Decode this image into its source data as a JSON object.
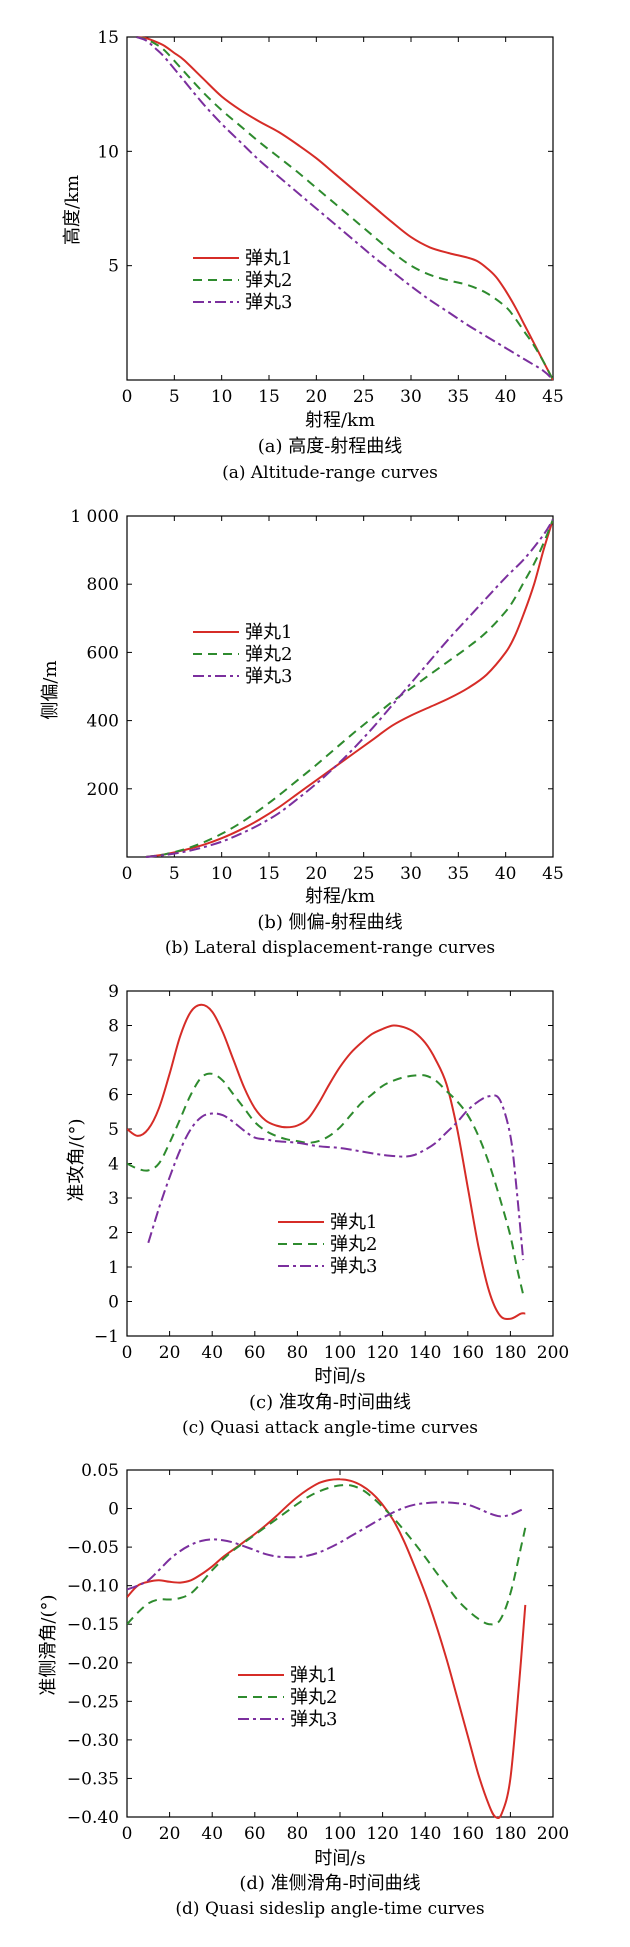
{
  "chart_data": [
    {
      "type": "line",
      "xlabel": "射程/km",
      "ylabel": "高度/km",
      "caption_cn": "(a) 高度-射程曲线",
      "caption_en": "(a) Altitude-range curves",
      "xlim": [
        0,
        45
      ],
      "ylim": [
        0,
        15
      ],
      "xticks": [
        0,
        5,
        10,
        15,
        20,
        25,
        30,
        35,
        40,
        45
      ],
      "xtick_labels": [
        "0",
        "5",
        "10",
        "15",
        "20",
        "25",
        "30",
        "35",
        "40",
        "45"
      ],
      "yticks": [
        5,
        10,
        15
      ],
      "ytick_labels": [
        "5",
        "10",
        "15"
      ],
      "legend_position": "center-left",
      "grid": false,
      "series": [
        {
          "name": "弹丸1",
          "color": "#d62c27",
          "dash": "solid",
          "x": [
            1,
            2,
            3,
            4,
            5,
            6,
            8,
            10,
            12,
            14,
            16,
            18,
            20,
            22,
            24,
            26,
            28,
            30,
            32,
            34,
            36,
            37,
            38,
            39,
            40,
            41,
            42,
            43,
            44,
            45
          ],
          "y": [
            15,
            14.95,
            14.8,
            14.6,
            14.3,
            14,
            13.2,
            12.4,
            11.8,
            11.3,
            10.85,
            10.3,
            9.7,
            9,
            8.3,
            7.6,
            6.9,
            6.25,
            5.8,
            5.55,
            5.35,
            5.2,
            4.9,
            4.5,
            3.9,
            3.2,
            2.4,
            1.6,
            0.8,
            0
          ]
        },
        {
          "name": "弹丸2",
          "color": "#2e8b2e",
          "dash": "dashed",
          "x": [
            1,
            2,
            3,
            4,
            6,
            8,
            10,
            12,
            14,
            16,
            18,
            20,
            22,
            24,
            26,
            28,
            30,
            32,
            34,
            36,
            38,
            40,
            41,
            42,
            43,
            44,
            45
          ],
          "y": [
            15,
            14.9,
            14.7,
            14.4,
            13.5,
            12.6,
            11.8,
            11.1,
            10.4,
            9.75,
            9.1,
            8.4,
            7.7,
            7,
            6.3,
            5.6,
            5.0,
            4.6,
            4.35,
            4.15,
            3.8,
            3.2,
            2.7,
            2.1,
            1.5,
            0.8,
            0
          ]
        },
        {
          "name": "弹丸3",
          "color": "#7b2f9e",
          "dash": "dashdot",
          "x": [
            1,
            2,
            3,
            4,
            6,
            8,
            10,
            12,
            14,
            16,
            18,
            20,
            22,
            24,
            26,
            28,
            30,
            32,
            34,
            36,
            38,
            40,
            42,
            44,
            45
          ],
          "y": [
            15,
            14.85,
            14.5,
            14.1,
            13.1,
            12.1,
            11.2,
            10.4,
            9.6,
            8.9,
            8.2,
            7.5,
            6.8,
            6.1,
            5.4,
            4.75,
            4.1,
            3.5,
            2.95,
            2.4,
            1.9,
            1.4,
            0.9,
            0.4,
            0
          ]
        }
      ]
    },
    {
      "type": "line",
      "xlabel": "射程/km",
      "ylabel": "侧偏/m",
      "caption_cn": "(b) 侧偏-射程曲线",
      "caption_en": "(b) Lateral displacement-range curves",
      "xlim": [
        0,
        45
      ],
      "ylim": [
        0,
        1000
      ],
      "xticks": [
        0,
        5,
        10,
        15,
        20,
        25,
        30,
        35,
        40,
        45
      ],
      "xtick_labels": [
        "0",
        "5",
        "10",
        "15",
        "20",
        "25",
        "30",
        "35",
        "40",
        "45"
      ],
      "yticks": [
        200,
        400,
        600,
        800,
        1000
      ],
      "ytick_labels": [
        "200",
        "400",
        "600",
        "800",
        "1 000"
      ],
      "legend_position": "center-left",
      "grid": false,
      "series": [
        {
          "name": "弹丸1",
          "color": "#d62c27",
          "dash": "solid",
          "x": [
            2,
            4,
            6,
            8,
            10,
            12,
            14,
            16,
            18,
            20,
            22,
            24,
            26,
            28,
            30,
            32,
            34,
            36,
            38,
            40,
            41,
            42,
            43,
            44,
            45
          ],
          "y": [
            0,
            8,
            20,
            35,
            55,
            80,
            110,
            145,
            185,
            225,
            265,
            305,
            345,
            385,
            415,
            440,
            465,
            495,
            535,
            600,
            650,
            720,
            800,
            900,
            990
          ]
        },
        {
          "name": "弹丸2",
          "color": "#2e8b2e",
          "dash": "dashed",
          "x": [
            2,
            4,
            6,
            8,
            10,
            12,
            14,
            16,
            18,
            20,
            22,
            24,
            26,
            28,
            30,
            32,
            34,
            36,
            38,
            40,
            41,
            42,
            43,
            44,
            45
          ],
          "y": [
            0,
            8,
            22,
            42,
            68,
            100,
            138,
            180,
            225,
            270,
            318,
            365,
            410,
            455,
            495,
            535,
            575,
            615,
            660,
            720,
            760,
            810,
            860,
            920,
            990
          ]
        },
        {
          "name": "弹丸3",
          "color": "#7b2f9e",
          "dash": "dashdot",
          "x": [
            2,
            4,
            6,
            8,
            10,
            12,
            14,
            16,
            18,
            20,
            22,
            24,
            26,
            28,
            30,
            32,
            34,
            36,
            38,
            40,
            42,
            44,
            45
          ],
          "y": [
            0,
            6,
            15,
            28,
            45,
            68,
            95,
            128,
            170,
            215,
            265,
            320,
            380,
            445,
            510,
            575,
            640,
            700,
            760,
            820,
            875,
            945,
            990
          ]
        }
      ]
    },
    {
      "type": "line",
      "xlabel": "时间/s",
      "ylabel": "准攻角/(°)",
      "caption_cn": "(c) 准攻角-时间曲线",
      "caption_en": "(c) Quasi attack angle-time curves",
      "xlim": [
        0,
        200
      ],
      "ylim": [
        -1,
        9
      ],
      "xticks": [
        0,
        20,
        40,
        60,
        80,
        100,
        120,
        140,
        160,
        180,
        200
      ],
      "xtick_labels": [
        "0",
        "20",
        "40",
        "60",
        "80",
        "100",
        "120",
        "140",
        "160",
        "180",
        "200"
      ],
      "yticks": [
        -1,
        0,
        1,
        2,
        3,
        4,
        5,
        6,
        7,
        8,
        9
      ],
      "ytick_labels": [
        "−1",
        "0",
        "1",
        "2",
        "3",
        "4",
        "5",
        "6",
        "7",
        "8",
        "9"
      ],
      "legend_position": "center",
      "grid": false,
      "series": [
        {
          "name": "弹丸1",
          "color": "#d62c27",
          "dash": "solid",
          "x": [
            0,
            5,
            10,
            15,
            20,
            25,
            30,
            35,
            40,
            45,
            50,
            55,
            60,
            65,
            70,
            75,
            80,
            85,
            90,
            95,
            100,
            105,
            110,
            115,
            120,
            125,
            130,
            135,
            140,
            145,
            150,
            155,
            160,
            165,
            170,
            175,
            180,
            185,
            187
          ],
          "y": [
            5.0,
            4.8,
            5.0,
            5.6,
            6.6,
            7.7,
            8.4,
            8.6,
            8.4,
            7.8,
            7.0,
            6.2,
            5.6,
            5.25,
            5.1,
            5.05,
            5.1,
            5.3,
            5.75,
            6.3,
            6.8,
            7.2,
            7.5,
            7.75,
            7.9,
            8.0,
            7.95,
            7.8,
            7.5,
            7.0,
            6.3,
            5.0,
            3.3,
            1.6,
            0.3,
            -0.4,
            -0.5,
            -0.35,
            -0.35
          ]
        },
        {
          "name": "弹丸2",
          "color": "#2e8b2e",
          "dash": "dashed",
          "x": [
            0,
            5,
            10,
            15,
            20,
            25,
            30,
            35,
            40,
            45,
            50,
            55,
            60,
            65,
            70,
            75,
            80,
            85,
            90,
            95,
            100,
            105,
            110,
            115,
            120,
            125,
            130,
            135,
            140,
            145,
            150,
            155,
            160,
            165,
            170,
            175,
            180,
            183,
            186
          ],
          "y": [
            4.0,
            3.85,
            3.8,
            4.0,
            4.6,
            5.3,
            6.0,
            6.5,
            6.6,
            6.4,
            6.0,
            5.6,
            5.2,
            4.95,
            4.8,
            4.7,
            4.65,
            4.6,
            4.65,
            4.8,
            5.05,
            5.4,
            5.75,
            6.0,
            6.25,
            6.4,
            6.5,
            6.55,
            6.55,
            6.4,
            6.1,
            5.8,
            5.4,
            4.8,
            4.0,
            3.0,
            1.9,
            1.0,
            0.2
          ]
        },
        {
          "name": "弹丸3",
          "color": "#7b2f9e",
          "dash": "dashdot",
          "x": [
            10,
            15,
            20,
            25,
            30,
            35,
            40,
            45,
            50,
            55,
            60,
            65,
            70,
            80,
            90,
            100,
            110,
            120,
            130,
            135,
            140,
            145,
            150,
            155,
            160,
            165,
            170,
            175,
            180,
            183,
            186
          ],
          "y": [
            1.7,
            2.7,
            3.6,
            4.4,
            5.0,
            5.35,
            5.45,
            5.4,
            5.2,
            4.95,
            4.75,
            4.7,
            4.65,
            4.6,
            4.5,
            4.45,
            4.35,
            4.25,
            4.2,
            4.25,
            4.4,
            4.6,
            4.9,
            5.2,
            5.55,
            5.8,
            5.95,
            5.85,
            4.8,
            3.2,
            1.2
          ]
        }
      ]
    },
    {
      "type": "line",
      "xlabel": "时间/s",
      "ylabel": "准侧滑角/(°)",
      "caption_cn": "(d) 准侧滑角-时间曲线",
      "caption_en": "(d) Quasi sideslip angle-time curves",
      "xlim": [
        0,
        200
      ],
      "ylim": [
        -0.4,
        0.05
      ],
      "xticks": [
        0,
        20,
        40,
        60,
        80,
        100,
        120,
        140,
        160,
        180,
        200
      ],
      "xtick_labels": [
        "0",
        "20",
        "40",
        "60",
        "80",
        "100",
        "120",
        "140",
        "160",
        "180",
        "200"
      ],
      "yticks": [
        -0.4,
        -0.35,
        -0.3,
        -0.25,
        -0.2,
        -0.15,
        -0.1,
        -0.05,
        0,
        0.05
      ],
      "ytick_labels": [
        "−0.40",
        "−0.35",
        "−0.30",
        "−0.25",
        "−0.20",
        "−0.15",
        "−0.10",
        "−0.05",
        "0",
        "0.05"
      ],
      "legend_position": "lower-left",
      "grid": false,
      "series": [
        {
          "name": "弹丸1",
          "color": "#d62c27",
          "dash": "solid",
          "x": [
            0,
            5,
            10,
            15,
            20,
            25,
            30,
            35,
            40,
            45,
            50,
            55,
            60,
            65,
            70,
            75,
            80,
            85,
            90,
            95,
            100,
            105,
            110,
            115,
            120,
            125,
            130,
            135,
            140,
            145,
            150,
            155,
            160,
            165,
            170,
            173,
            176,
            180,
            184,
            187
          ],
          "y": [
            -0.115,
            -0.1,
            -0.095,
            -0.093,
            -0.095,
            -0.096,
            -0.093,
            -0.085,
            -0.075,
            -0.063,
            -0.053,
            -0.043,
            -0.033,
            -0.022,
            -0.01,
            0.003,
            0.015,
            0.025,
            0.033,
            0.037,
            0.038,
            0.036,
            0.03,
            0.02,
            0.005,
            -0.015,
            -0.042,
            -0.075,
            -0.11,
            -0.15,
            -0.195,
            -0.245,
            -0.295,
            -0.345,
            -0.385,
            -0.4,
            -0.395,
            -0.35,
            -0.23,
            -0.125
          ]
        },
        {
          "name": "弹丸2",
          "color": "#2e8b2e",
          "dash": "dashed",
          "x": [
            0,
            5,
            10,
            15,
            20,
            25,
            30,
            35,
            40,
            45,
            50,
            55,
            60,
            65,
            70,
            75,
            80,
            85,
            90,
            95,
            100,
            105,
            110,
            115,
            120,
            125,
            130,
            135,
            140,
            145,
            150,
            155,
            160,
            165,
            170,
            175,
            180,
            185,
            187
          ],
          "y": [
            -0.15,
            -0.135,
            -0.123,
            -0.118,
            -0.118,
            -0.116,
            -0.11,
            -0.096,
            -0.08,
            -0.066,
            -0.054,
            -0.044,
            -0.034,
            -0.024,
            -0.014,
            -0.004,
            0.006,
            0.015,
            0.022,
            0.027,
            0.03,
            0.03,
            0.025,
            0.015,
            0.002,
            -0.012,
            -0.028,
            -0.045,
            -0.063,
            -0.082,
            -0.1,
            -0.118,
            -0.132,
            -0.143,
            -0.15,
            -0.145,
            -0.11,
            -0.05,
            -0.025
          ]
        },
        {
          "name": "弹丸3",
          "color": "#7b2f9e",
          "dash": "dashdot",
          "x": [
            0,
            5,
            10,
            15,
            20,
            25,
            30,
            35,
            40,
            45,
            50,
            55,
            60,
            65,
            70,
            75,
            80,
            85,
            90,
            95,
            100,
            105,
            110,
            115,
            120,
            125,
            130,
            135,
            140,
            145,
            150,
            155,
            160,
            165,
            170,
            175,
            180,
            185,
            187
          ],
          "y": [
            -0.105,
            -0.1,
            -0.093,
            -0.08,
            -0.066,
            -0.055,
            -0.047,
            -0.042,
            -0.04,
            -0.041,
            -0.044,
            -0.049,
            -0.054,
            -0.059,
            -0.062,
            -0.063,
            -0.063,
            -0.061,
            -0.057,
            -0.051,
            -0.044,
            -0.036,
            -0.028,
            -0.02,
            -0.012,
            -0.005,
            0.001,
            0.005,
            0.007,
            0.008,
            0.008,
            0.007,
            0.005,
            0.0,
            -0.006,
            -0.01,
            -0.008,
            -0.002,
            0.0
          ]
        }
      ]
    }
  ]
}
